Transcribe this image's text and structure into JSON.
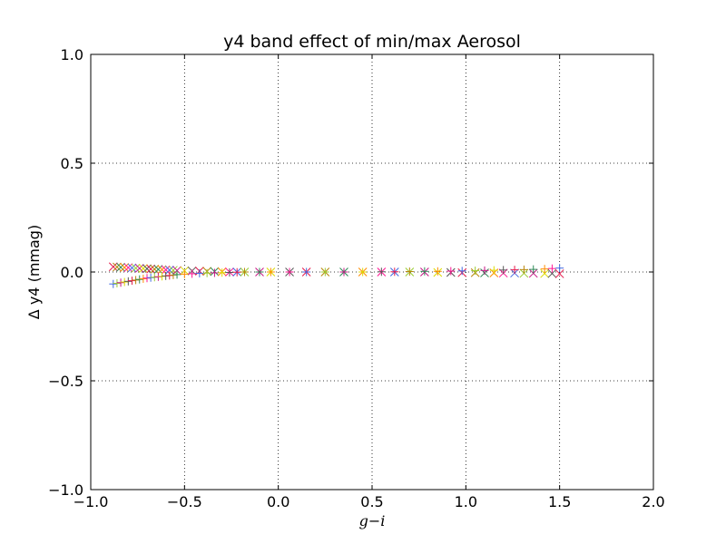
{
  "chart_data": {
    "type": "scatter",
    "title": "y4 band effect of min/max Aerosol",
    "xlabel": "g−i",
    "ylabel": "Δ y4 (mmag)",
    "xlim": [
      -1.0,
      2.0
    ],
    "ylim": [
      -1.0,
      1.0
    ],
    "xticks": [
      -1.0,
      -0.5,
      0.0,
      0.5,
      1.0,
      1.5,
      2.0
    ],
    "yticks": [
      -1.0,
      -0.5,
      0.0,
      0.5,
      1.0
    ],
    "xtick_labels": [
      "−1.0",
      "−0.5",
      "0.0",
      "0.5",
      "1.0",
      "1.5",
      "2.0"
    ],
    "ytick_labels": [
      "−1.0",
      "−0.5",
      "0.0",
      "0.5",
      "1.0"
    ],
    "grid": true,
    "grid_style": "dotted",
    "marker_colors": [
      "#e6194b",
      "#c71585",
      "#ff1493",
      "#b8860b",
      "#dcdc00",
      "#4169e1",
      "#2e8b57",
      "#555555",
      "#9acd32",
      "#ff8c00"
    ],
    "series": [
      {
        "marker": "x",
        "x": [
          -0.88,
          -0.86,
          -0.84,
          -0.82,
          -0.8,
          -0.78,
          -0.76,
          -0.74,
          -0.72,
          -0.7,
          -0.68,
          -0.66,
          -0.64,
          -0.62,
          -0.6,
          -0.58,
          -0.56,
          -0.54,
          -0.5,
          -0.46,
          -0.42,
          -0.38,
          -0.34,
          -0.3,
          -0.26,
          -0.22,
          -0.18,
          -0.1,
          -0.04,
          0.06,
          0.15,
          0.25,
          0.35,
          0.45,
          0.55,
          0.62,
          0.7,
          0.78,
          0.85,
          0.92,
          0.98,
          1.05,
          1.1,
          1.15,
          1.2,
          1.26,
          1.31,
          1.36,
          1.42,
          1.46,
          1.5
        ],
        "y": [
          0.024,
          0.023,
          0.022,
          0.021,
          0.02,
          0.019,
          0.018,
          0.017,
          0.016,
          0.015,
          0.014,
          0.013,
          0.012,
          0.011,
          0.01,
          0.009,
          0.008,
          0.007,
          0.006,
          0.005,
          0.004,
          0.003,
          0.002,
          0.001,
          0.0,
          0.0,
          0.0,
          0.0,
          0.0,
          0.0,
          0.0,
          0.0,
          0.0,
          0.0,
          0.0,
          0.0,
          0.0,
          0.0,
          -0.002,
          -0.002,
          -0.003,
          -0.003,
          -0.004,
          -0.004,
          -0.005,
          -0.005,
          -0.006,
          -0.006,
          -0.007,
          -0.007,
          -0.008
        ]
      },
      {
        "marker": "+",
        "x": [
          -0.88,
          -0.86,
          -0.84,
          -0.82,
          -0.8,
          -0.78,
          -0.76,
          -0.74,
          -0.72,
          -0.7,
          -0.68,
          -0.66,
          -0.64,
          -0.62,
          -0.6,
          -0.58,
          -0.56,
          -0.54,
          -0.5,
          -0.46,
          -0.42,
          -0.38,
          -0.34,
          -0.3,
          -0.26,
          -0.22,
          -0.18,
          -0.1,
          -0.04,
          0.06,
          0.15,
          0.25,
          0.35,
          0.45,
          0.55,
          0.62,
          0.7,
          0.78,
          0.85,
          0.92,
          0.98,
          1.05,
          1.1,
          1.15,
          1.2,
          1.26,
          1.31,
          1.36,
          1.42,
          1.46,
          1.5
        ],
        "y": [
          -0.055,
          -0.052,
          -0.049,
          -0.046,
          -0.043,
          -0.04,
          -0.037,
          -0.034,
          -0.031,
          -0.028,
          -0.026,
          -0.024,
          -0.022,
          -0.02,
          -0.018,
          -0.016,
          -0.014,
          -0.012,
          -0.01,
          -0.008,
          -0.006,
          -0.005,
          -0.004,
          -0.003,
          -0.002,
          -0.001,
          0.0,
          0.0,
          0.0,
          0.0,
          0.0,
          0.0,
          0.0,
          0.0,
          0.001,
          0.001,
          0.002,
          0.003,
          0.003,
          0.004,
          0.005,
          0.006,
          0.007,
          0.008,
          0.009,
          0.01,
          0.011,
          0.012,
          0.014,
          0.016,
          0.018
        ]
      }
    ]
  }
}
